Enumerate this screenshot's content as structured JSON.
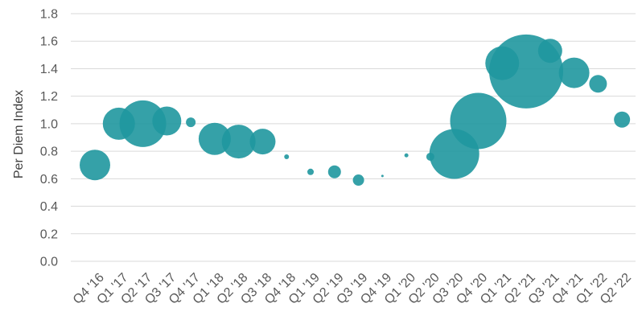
{
  "chart_data": {
    "type": "scatter",
    "subtype": "bubble",
    "title": "",
    "xlabel": "",
    "ylabel": "Per Diem Index",
    "ylim": [
      0,
      1.8
    ],
    "yticks": [
      "0.0",
      "0.2",
      "0.4",
      "0.6",
      "0.8",
      "1.0",
      "1.2",
      "1.4",
      "1.6",
      "1.8"
    ],
    "grid": true,
    "legend": "none",
    "categories": [
      "Q4 '16",
      "Q1 '17",
      "Q2 '17",
      "Q3 '17",
      "Q4 '17",
      "Q1 '18",
      "Q2 '18",
      "Q3 '18",
      "Q4 '18",
      "Q1 '19",
      "Q2 '19",
      "Q3 '19",
      "Q4 '19",
      "Q1 '20",
      "Q2 '20",
      "Q3 '20",
      "Q4 '20",
      "Q1 '21",
      "Q2 '21",
      "Q3 '21",
      "Q4 '21",
      "Q1 '22",
      "Q2 '22"
    ],
    "points": [
      {
        "x": "Q4 '16",
        "y": 0.7,
        "size": 19
      },
      {
        "x": "Q1 '17",
        "y": 1.0,
        "size": 20
      },
      {
        "x": "Q2 '17",
        "y": 1.0,
        "size": 29
      },
      {
        "x": "Q3 '17",
        "y": 1.02,
        "size": 18
      },
      {
        "x": "Q4 '17",
        "y": 1.01,
        "size": 6
      },
      {
        "x": "Q1 '18",
        "y": 0.89,
        "size": 20
      },
      {
        "x": "Q2 '18",
        "y": 0.87,
        "size": 21
      },
      {
        "x": "Q3 '18",
        "y": 0.87,
        "size": 16
      },
      {
        "x": "Q4 '18",
        "y": 0.76,
        "size": 3
      },
      {
        "x": "Q1 '19",
        "y": 0.65,
        "size": 4
      },
      {
        "x": "Q2 '19",
        "y": 0.65,
        "size": 8
      },
      {
        "x": "Q3 '19",
        "y": 0.59,
        "size": 7
      },
      {
        "x": "Q4 '19",
        "y": 0.62,
        "size": 1.5
      },
      {
        "x": "Q1 '20",
        "y": 0.77,
        "size": 2.5
      },
      {
        "x": "Q2 '20",
        "y": 0.76,
        "size": 5
      },
      {
        "x": "Q3 '20",
        "y": 0.78,
        "size": 31
      },
      {
        "x": "Q4 '20",
        "y": 1.02,
        "size": 35
      },
      {
        "x": "Q1 '21",
        "y": 1.44,
        "size": 21
      },
      {
        "x": "Q2 '21",
        "y": 1.38,
        "size": 46
      },
      {
        "x": "Q3 '21",
        "y": 1.53,
        "size": 15
      },
      {
        "x": "Q4 '21",
        "y": 1.37,
        "size": 19
      },
      {
        "x": "Q1 '22",
        "y": 1.29,
        "size": 11
      },
      {
        "x": "Q2 '22",
        "y": 1.03,
        "size": 10
      }
    ],
    "colors": {
      "bubble": "#1f979f",
      "grid": "#d9d9d9",
      "tick_text": "#595959",
      "axis_title": "#404040"
    }
  }
}
